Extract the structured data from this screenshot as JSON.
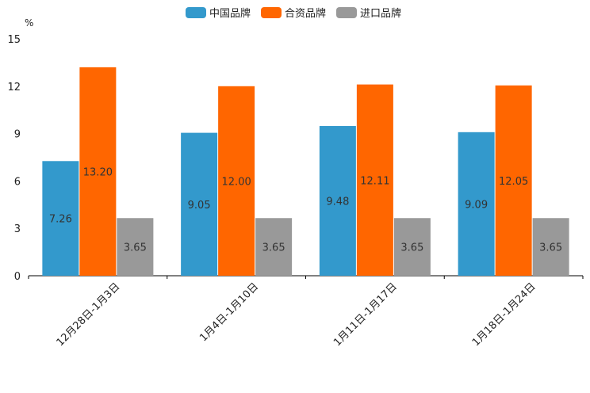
{
  "chart_data": {
    "type": "bar",
    "unit": "%",
    "categories": [
      "12月28日-1月3日",
      "1月4日-1月10日",
      "1月11日-1月17日",
      "1月18日-1月24日"
    ],
    "series": [
      {
        "name": "中国品牌",
        "color": "#3399CC",
        "values": [
          7.26,
          9.05,
          9.48,
          9.09
        ],
        "labels": [
          "7.26",
          "9.05",
          "9.48",
          "9.09"
        ]
      },
      {
        "name": "合资品牌",
        "color": "#FF6600",
        "values": [
          13.2,
          12.0,
          12.11,
          12.05
        ],
        "labels": [
          "13.20",
          "12.00",
          "12.11",
          "12.05"
        ]
      },
      {
        "name": "进口品牌",
        "color": "#999999",
        "values": [
          3.65,
          3.65,
          3.65,
          3.65
        ],
        "labels": [
          "3.65",
          "3.65",
          "3.65",
          "3.65"
        ]
      }
    ],
    "ylim": [
      0,
      15
    ],
    "yticks": [
      0,
      3,
      6,
      9,
      12,
      15
    ],
    "legend_position": "top-center",
    "grid": false
  }
}
